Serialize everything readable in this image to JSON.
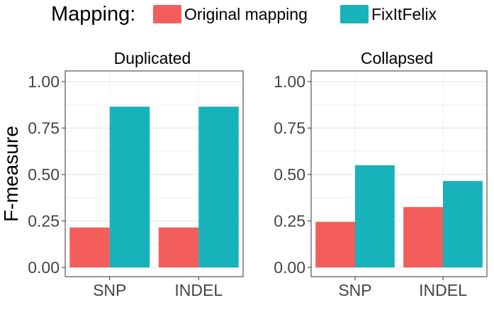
{
  "legend": {
    "title": "Mapping:",
    "items": [
      {
        "label": "Original mapping",
        "color": "#F35E5A"
      },
      {
        "label": "FixItFelix",
        "color": "#17B2BA"
      }
    ]
  },
  "ylabel": "F-measure",
  "chart_data": [
    {
      "type": "bar",
      "title": "Duplicated",
      "categories": [
        "SNP",
        "INDEL"
      ],
      "series": [
        {
          "name": "Original mapping",
          "values": [
            0.215,
            0.215
          ]
        },
        {
          "name": "FixItFelix",
          "values": [
            0.865,
            0.865
          ]
        }
      ],
      "ylabel": "F-measure",
      "ylim": [
        0,
        1.0
      ],
      "yticks": [
        "0.00",
        "0.25",
        "0.50",
        "0.75",
        "1.00"
      ],
      "grid": true,
      "legend": "top"
    },
    {
      "type": "bar",
      "title": "Collapsed",
      "categories": [
        "SNP",
        "INDEL"
      ],
      "series": [
        {
          "name": "Original mapping",
          "values": [
            0.245,
            0.325
          ]
        },
        {
          "name": "FixItFelix",
          "values": [
            0.55,
            0.465
          ]
        }
      ],
      "ylabel": "",
      "ylim": [
        0,
        1.0
      ],
      "yticks": [
        "0.00",
        "0.25",
        "0.50",
        "0.75",
        "1.00"
      ],
      "grid": true,
      "legend": "top"
    }
  ]
}
